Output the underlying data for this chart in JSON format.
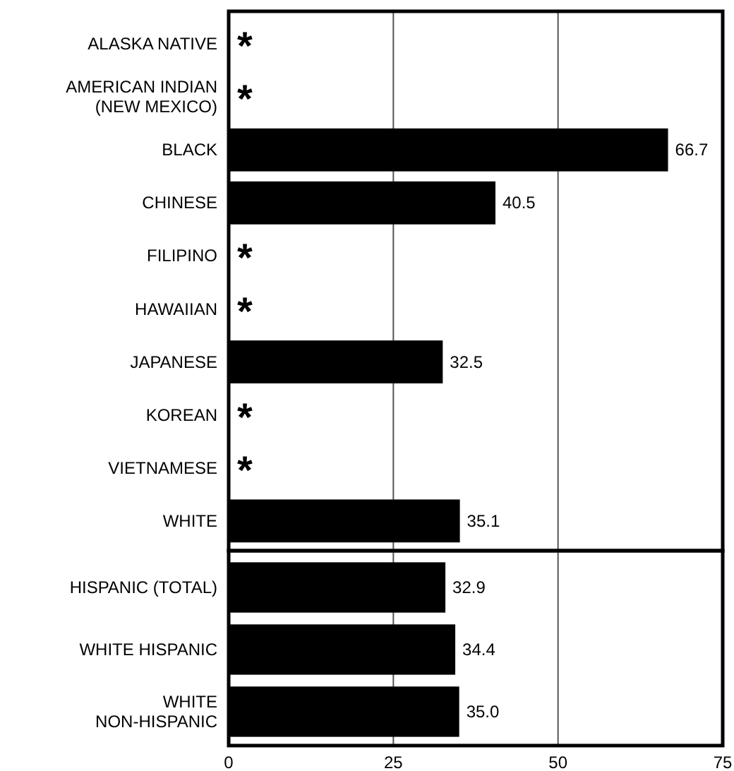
{
  "chart_data": [
    {
      "type": "bar",
      "orientation": "horizontal",
      "categories": [
        "ALASKA NATIVE",
        "AMERICAN INDIAN\n(NEW MEXICO)",
        "BLACK",
        "CHINESE",
        "FILIPINO",
        "HAWAIIAN",
        "JAPANESE",
        "KOREAN",
        "VIETNAMESE",
        "WHITE"
      ],
      "values": [
        null,
        null,
        66.7,
        40.5,
        null,
        null,
        32.5,
        null,
        null,
        35.1
      ],
      "value_labels": [
        "*",
        "*",
        "66.7",
        "40.5",
        "*",
        "*",
        "32.5",
        "*",
        "*",
        "35.1"
      ],
      "color": "#000000",
      "xlim": [
        0,
        75
      ],
      "xticks": [
        0,
        25,
        50,
        75
      ],
      "grid": "x",
      "tick_labels": false
    },
    {
      "type": "bar",
      "orientation": "horizontal",
      "categories": [
        "HISPANIC (TOTAL)",
        "WHITE HISPANIC",
        "WHITE\nNON-HISPANIC"
      ],
      "values": [
        32.9,
        34.4,
        35.0
      ],
      "value_labels": [
        "32.9",
        "34.4",
        "35.0"
      ],
      "color": "#000000",
      "xlim": [
        0,
        75
      ],
      "xticks": [
        0,
        25,
        50,
        75
      ],
      "grid": "x",
      "tick_labels": "x"
    }
  ]
}
